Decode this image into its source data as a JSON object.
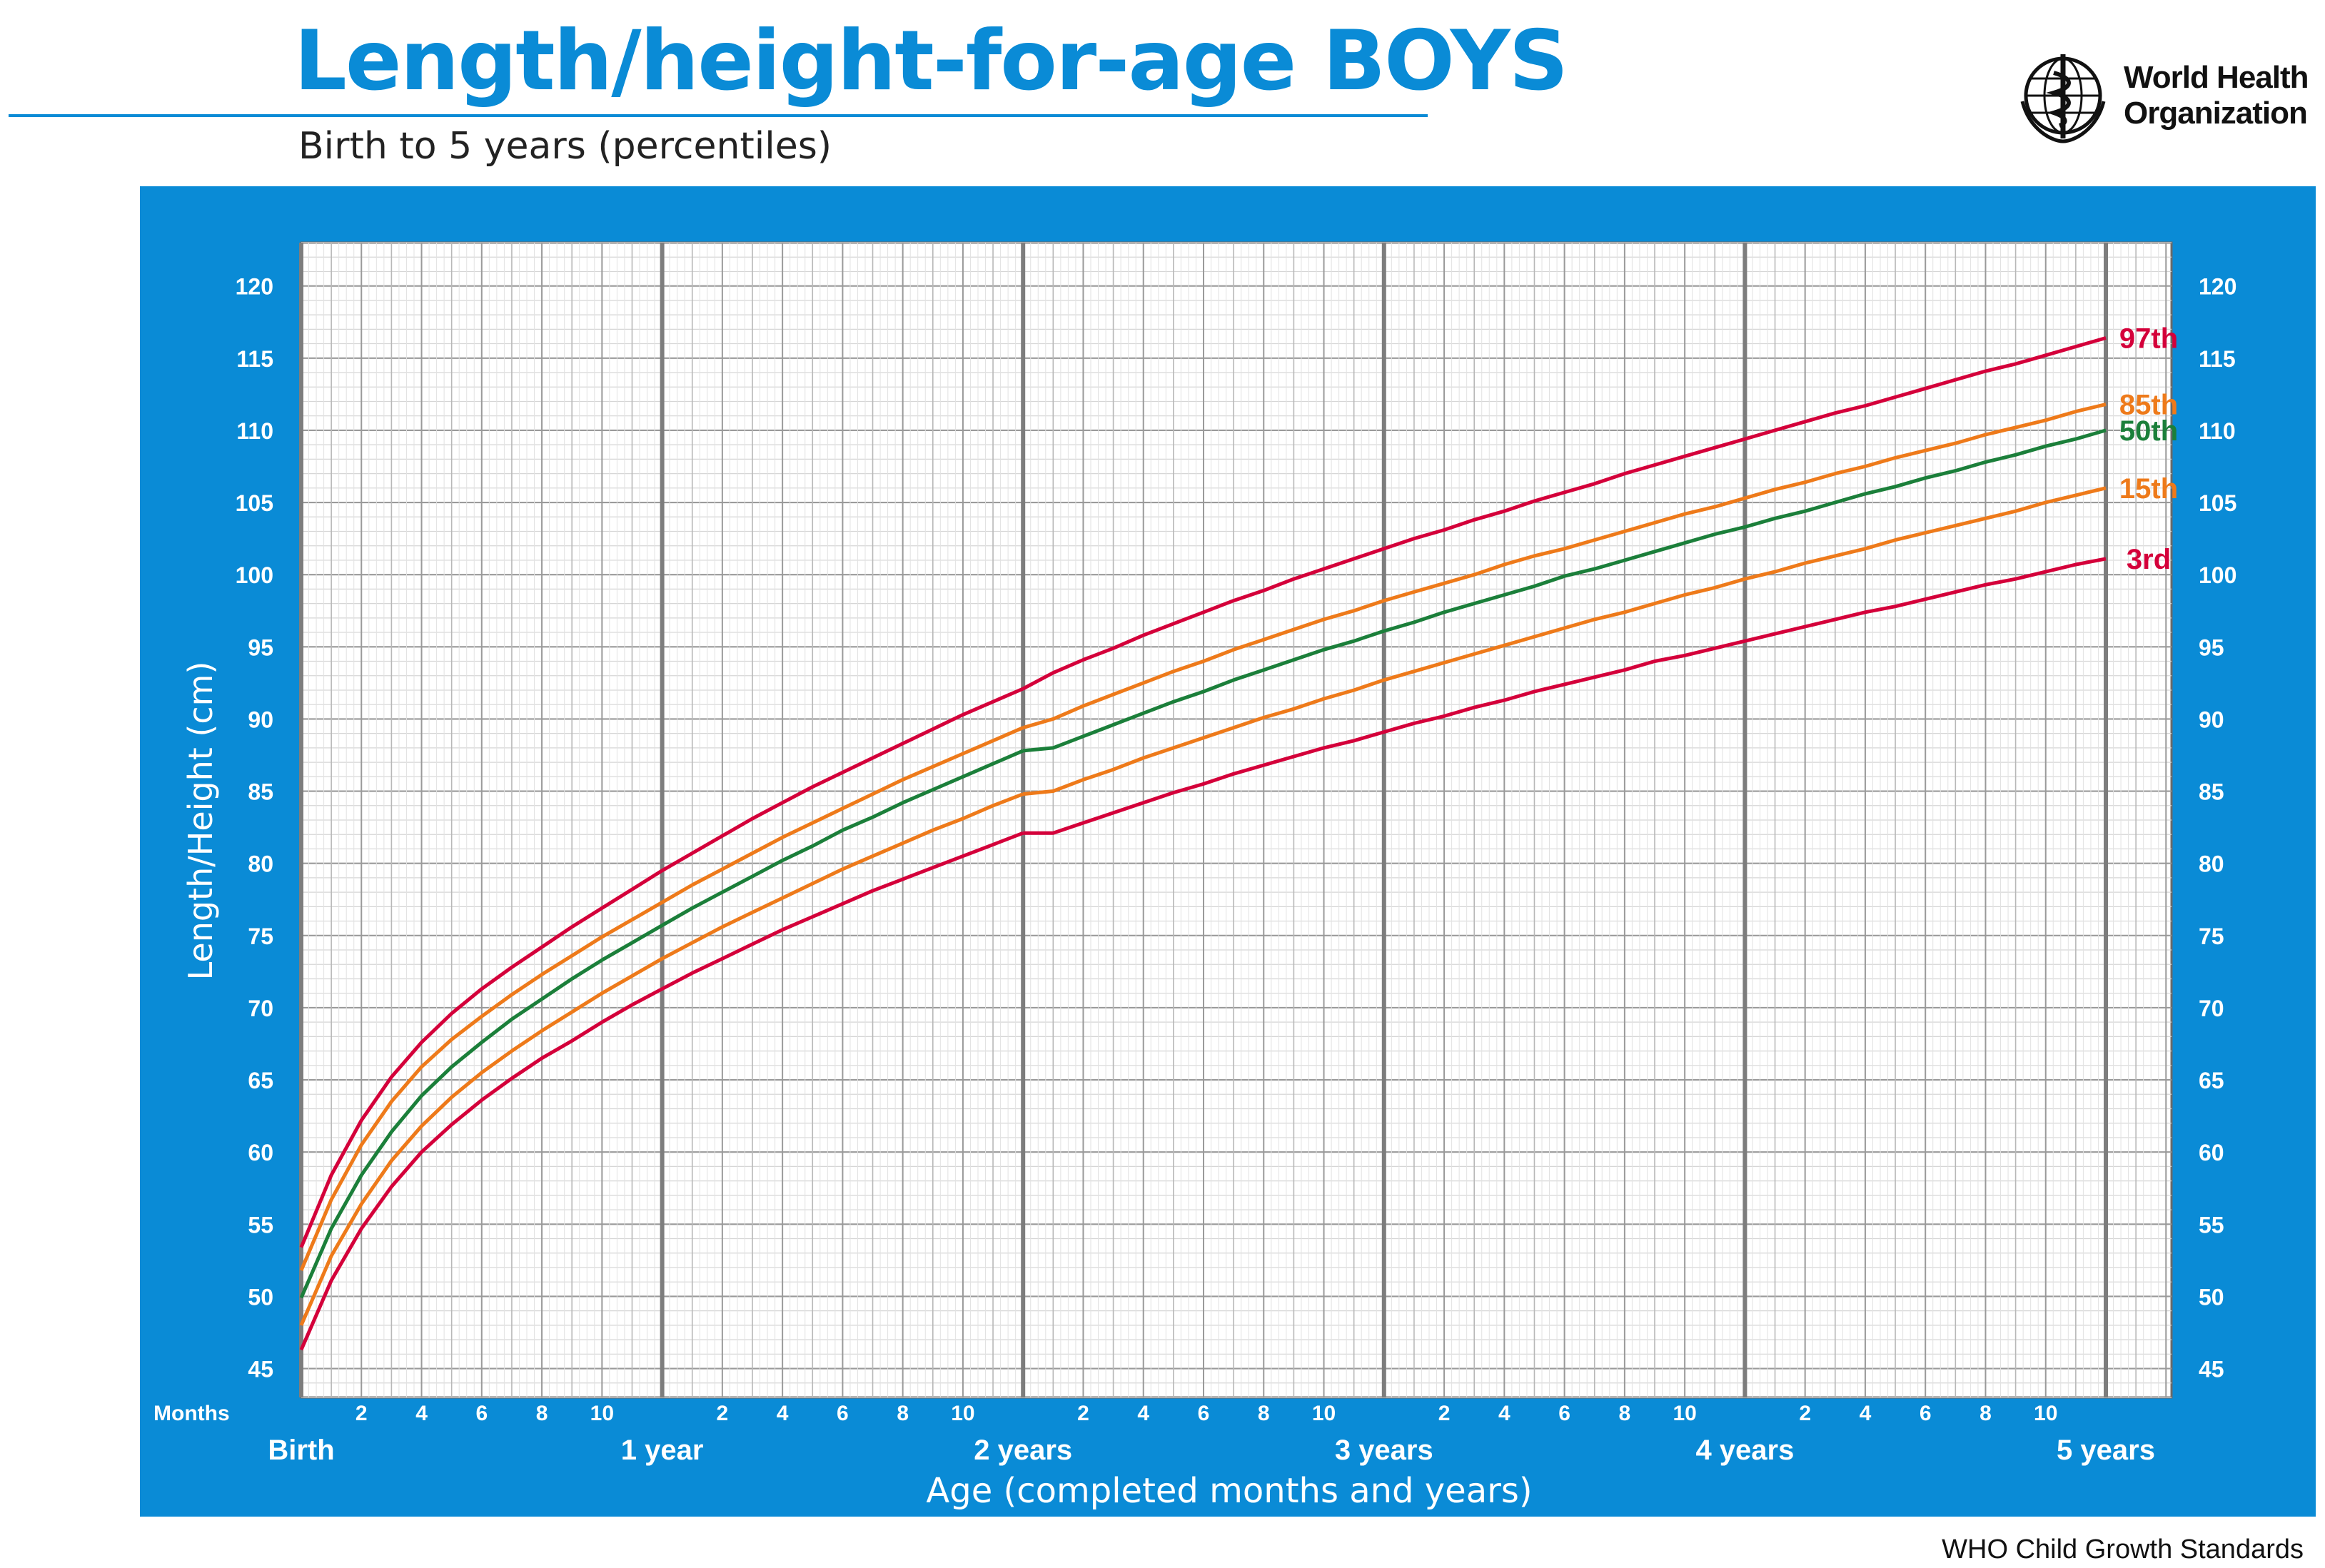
{
  "header": {
    "title": "Length/height-for-age BOYS",
    "subtitle": "Birth to 5 years (percentiles)",
    "org_line1": "World Health",
    "org_line2": "Organization",
    "logo_icon": "who-emblem-icon"
  },
  "footer": {
    "text": "WHO Child Growth Standards"
  },
  "colors": {
    "brand_blue": "#0a8bd6",
    "p97": "#d4003a",
    "p85": "#ee7a1a",
    "p50": "#1b7f3a",
    "p15": "#ee7a1a",
    "p3": "#d4003a"
  },
  "chart_data": {
    "type": "line",
    "title": "Length/height-for-age BOYS",
    "subtitle": "Birth to 5 years (percentiles)",
    "xlabel": "Age (completed months and years)",
    "ylabel": "Length/Height (cm)",
    "xlim": [
      0,
      60
    ],
    "ylim": [
      43,
      123
    ],
    "grid": true,
    "y_ticks": [
      45,
      50,
      55,
      60,
      65,
      70,
      75,
      80,
      85,
      90,
      95,
      100,
      105,
      110,
      115,
      120
    ],
    "x_month_ticks_label": "Months",
    "x_month_ticks": [
      "2",
      "4",
      "6",
      "8",
      "10"
    ],
    "x_year_labels": [
      {
        "month": 0,
        "label": "Birth"
      },
      {
        "month": 12,
        "label": "1 year"
      },
      {
        "month": 24,
        "label": "2 years"
      },
      {
        "month": 36,
        "label": "3 years"
      },
      {
        "month": 48,
        "label": "4 years"
      },
      {
        "month": 60,
        "label": "5 years"
      }
    ],
    "x": [
      0,
      1,
      2,
      3,
      4,
      5,
      6,
      7,
      8,
      9,
      10,
      11,
      12,
      13,
      14,
      15,
      16,
      17,
      18,
      19,
      20,
      21,
      22,
      23,
      24,
      25,
      26,
      27,
      28,
      29,
      30,
      31,
      32,
      33,
      34,
      35,
      36,
      37,
      38,
      39,
      40,
      41,
      42,
      43,
      44,
      45,
      46,
      47,
      48,
      49,
      50,
      51,
      52,
      53,
      54,
      55,
      56,
      57,
      58,
      59,
      60
    ],
    "series": [
      {
        "name": "97th",
        "color_key": "p97",
        "values": [
          53.4,
          58.4,
          62.2,
          65.2,
          67.6,
          69.6,
          71.3,
          72.8,
          74.2,
          75.6,
          76.9,
          78.2,
          79.5,
          80.7,
          81.9,
          83.1,
          84.2,
          85.3,
          86.3,
          87.3,
          88.3,
          89.3,
          90.3,
          91.2,
          92.1,
          93.2,
          94.1,
          94.9,
          95.8,
          96.6,
          97.4,
          98.2,
          98.9,
          99.7,
          100.4,
          101.1,
          101.8,
          102.5,
          103.1,
          103.8,
          104.4,
          105.1,
          105.7,
          106.3,
          107.0,
          107.6,
          108.2,
          108.8,
          109.4,
          110.0,
          110.6,
          111.2,
          111.7,
          112.3,
          112.9,
          113.5,
          114.1,
          114.6,
          115.2,
          115.8,
          116.4
        ]
      },
      {
        "name": "85th",
        "color_key": "p85",
        "values": [
          51.8,
          56.7,
          60.5,
          63.5,
          65.9,
          67.8,
          69.4,
          70.9,
          72.3,
          73.6,
          74.9,
          76.1,
          77.3,
          78.5,
          79.6,
          80.7,
          81.8,
          82.8,
          83.8,
          84.8,
          85.8,
          86.7,
          87.6,
          88.5,
          89.4,
          90.0,
          90.9,
          91.7,
          92.5,
          93.3,
          94.0,
          94.8,
          95.5,
          96.2,
          96.9,
          97.5,
          98.2,
          98.8,
          99.4,
          100.0,
          100.7,
          101.3,
          101.8,
          102.4,
          103.0,
          103.6,
          104.2,
          104.7,
          105.3,
          105.9,
          106.4,
          107.0,
          107.5,
          108.1,
          108.6,
          109.1,
          109.7,
          110.2,
          110.7,
          111.3,
          111.8
        ]
      },
      {
        "name": "50th",
        "color_key": "p50",
        "values": [
          49.9,
          54.7,
          58.4,
          61.4,
          63.9,
          65.9,
          67.6,
          69.2,
          70.6,
          72.0,
          73.3,
          74.5,
          75.7,
          76.9,
          78.0,
          79.1,
          80.2,
          81.2,
          82.3,
          83.2,
          84.2,
          85.1,
          86.0,
          86.9,
          87.8,
          88.0,
          88.8,
          89.6,
          90.4,
          91.2,
          91.9,
          92.7,
          93.4,
          94.1,
          94.8,
          95.4,
          96.1,
          96.7,
          97.4,
          98.0,
          98.6,
          99.2,
          99.9,
          100.4,
          101.0,
          101.6,
          102.2,
          102.8,
          103.3,
          103.9,
          104.4,
          105.0,
          105.6,
          106.1,
          106.7,
          107.2,
          107.8,
          108.3,
          108.9,
          109.4,
          110.0
        ]
      },
      {
        "name": "15th",
        "color_key": "p15",
        "values": [
          48.0,
          52.8,
          56.4,
          59.4,
          61.8,
          63.8,
          65.5,
          67.0,
          68.4,
          69.7,
          71.0,
          72.2,
          73.4,
          74.5,
          75.6,
          76.6,
          77.6,
          78.6,
          79.6,
          80.5,
          81.4,
          82.3,
          83.1,
          84.0,
          84.8,
          85.0,
          85.8,
          86.5,
          87.3,
          88.0,
          88.7,
          89.4,
          90.1,
          90.7,
          91.4,
          92.0,
          92.7,
          93.3,
          93.9,
          94.5,
          95.1,
          95.7,
          96.3,
          96.9,
          97.4,
          98.0,
          98.6,
          99.1,
          99.7,
          100.2,
          100.8,
          101.3,
          101.8,
          102.4,
          102.9,
          103.4,
          103.9,
          104.4,
          105.0,
          105.5,
          106.0
        ]
      },
      {
        "name": "3rd",
        "color_key": "p3",
        "values": [
          46.3,
          51.1,
          54.7,
          57.6,
          60.0,
          61.9,
          63.6,
          65.1,
          66.5,
          67.7,
          69.0,
          70.2,
          71.3,
          72.4,
          73.4,
          74.4,
          75.4,
          76.3,
          77.2,
          78.1,
          78.9,
          79.7,
          80.5,
          81.3,
          82.1,
          82.1,
          82.8,
          83.5,
          84.2,
          84.9,
          85.5,
          86.2,
          86.8,
          87.4,
          88.0,
          88.5,
          89.1,
          89.7,
          90.2,
          90.8,
          91.3,
          91.9,
          92.4,
          92.9,
          93.4,
          94.0,
          94.4,
          94.9,
          95.4,
          95.9,
          96.4,
          96.9,
          97.4,
          97.8,
          98.3,
          98.8,
          99.3,
          99.7,
          100.2,
          100.7,
          101.1
        ]
      }
    ]
  }
}
